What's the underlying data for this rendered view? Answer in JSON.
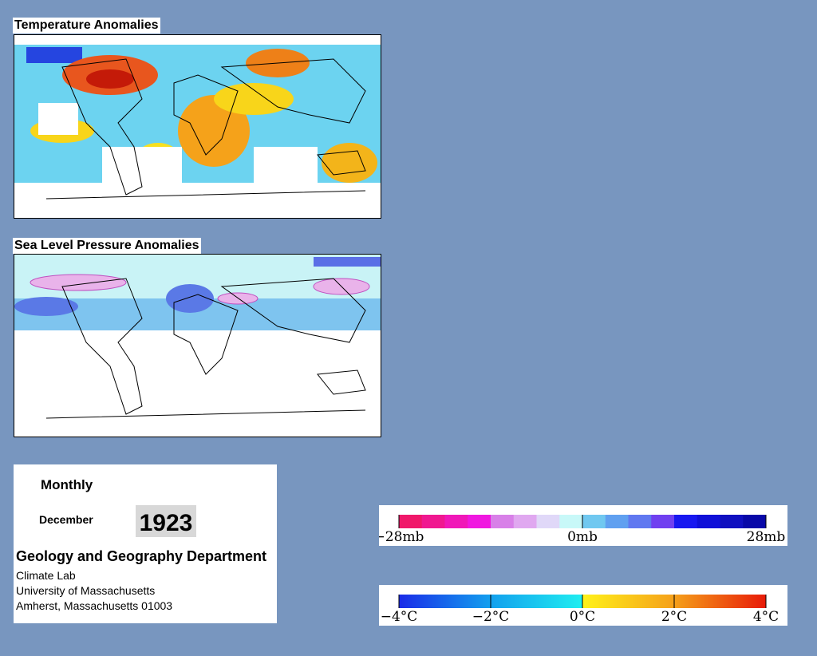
{
  "panels": [
    {
      "title": "Temperature Anomalies"
    },
    {
      "title": "Sea Level Pressure Anomalies"
    }
  ],
  "info": {
    "period": "Monthly",
    "month": "December",
    "year": "1923",
    "department": "Geology and Geography Department",
    "lines": [
      "Climate Lab",
      "University of Massachusetts",
      "Amherst, Massachusetts 01003"
    ]
  },
  "legends": [
    {
      "labels": [
        "−28mb",
        "0mb",
        "28mb"
      ]
    },
    {
      "labels": [
        "−4°C",
        "−2°C",
        "0°C",
        "2°C",
        "4°C"
      ]
    }
  ]
}
